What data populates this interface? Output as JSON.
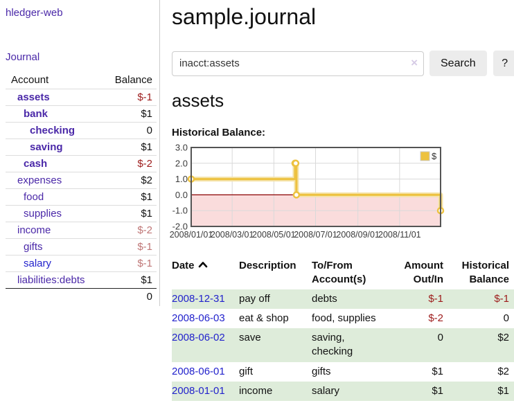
{
  "app": {
    "title": "hledger-web",
    "journal_nav": "Journal"
  },
  "sidebar": {
    "headers": {
      "account": "Account",
      "balance": "Balance"
    },
    "accounts": [
      {
        "name": "assets",
        "level": 1,
        "bold": true,
        "balance": "$-1",
        "balance_style": "neg-strong",
        "link_style": "purple"
      },
      {
        "name": "bank",
        "level": 2,
        "bold": true,
        "balance": "$1",
        "balance_style": "normal",
        "link_style": "purple"
      },
      {
        "name": "checking",
        "level": 3,
        "bold": true,
        "balance": "0",
        "balance_style": "normal",
        "link_style": "purple"
      },
      {
        "name": "saving",
        "level": 3,
        "bold": true,
        "balance": "$1",
        "balance_style": "normal",
        "link_style": "purple"
      },
      {
        "name": "cash",
        "level": 2,
        "bold": true,
        "balance": "$-2",
        "balance_style": "neg-strong",
        "link_style": "purple"
      },
      {
        "name": "expenses",
        "level": 1,
        "bold": false,
        "balance": "$2",
        "balance_style": "normal",
        "link_style": "purple"
      },
      {
        "name": "food",
        "level": 2,
        "bold": false,
        "balance": "$1",
        "balance_style": "normal",
        "link_style": "purple"
      },
      {
        "name": "supplies",
        "level": 2,
        "bold": false,
        "balance": "$1",
        "balance_style": "normal",
        "link_style": "purple"
      },
      {
        "name": "income",
        "level": 1,
        "bold": false,
        "balance": "$-2",
        "balance_style": "neg-muted",
        "link_style": "purple"
      },
      {
        "name": "gifts",
        "level": 2,
        "bold": false,
        "balance": "$-1",
        "balance_style": "neg-muted",
        "link_style": "purple"
      },
      {
        "name": "salary",
        "level": 2,
        "bold": false,
        "balance": "$-1",
        "balance_style": "neg-muted",
        "link_style": "blue"
      },
      {
        "name": "liabilities:debts",
        "level": 1,
        "bold": false,
        "balance": "$1",
        "balance_style": "normal",
        "link_style": "purple"
      }
    ],
    "total": "0"
  },
  "header": {
    "title": "sample.journal"
  },
  "search": {
    "value": "inacct:assets",
    "clear_icon": "×",
    "search_label": "Search",
    "help_label": "?"
  },
  "account_page": {
    "title": "assets",
    "chart_label": "Historical Balance:"
  },
  "chart_data": {
    "type": "line",
    "title": "Historical Balance",
    "step": true,
    "series": [
      {
        "name": "$",
        "color": "#edc240",
        "points": [
          [
            "2008-01-01",
            1
          ],
          [
            "2008-06-01",
            2
          ],
          [
            "2008-06-02",
            2
          ],
          [
            "2008-06-03",
            0
          ],
          [
            "2008-12-31",
            -1
          ]
        ]
      }
    ],
    "x_range": [
      "2008-01-01",
      "2008-12-31"
    ],
    "x_ticks": [
      "2008/01/01",
      "2008/03/01",
      "2008/05/01",
      "2008/07/01",
      "2008/09/01",
      "2008/11/01"
    ],
    "y_ticks": [
      "3.0",
      "2.0",
      "1.0",
      "0.0",
      "-1.0",
      "-2.0"
    ],
    "ylim": [
      -2,
      3
    ],
    "grid": true,
    "zero_line_color": "#8b0000",
    "negative_area_color": "#fadcdc",
    "legend": {
      "label": "$",
      "position": "top-right"
    }
  },
  "register": {
    "columns": [
      "Date",
      "Description",
      "To/From Account(s)",
      "Amount Out/In",
      "Historical Balance"
    ],
    "rows": [
      {
        "date": "2008-12-31",
        "description": "pay off",
        "accounts": "debts",
        "amount": "$-1",
        "amount_style": "neg-strong",
        "balance": "$-1",
        "balance_style": "neg-strong"
      },
      {
        "date": "2008-06-03",
        "description": "eat & shop",
        "accounts": "food, supplies",
        "amount": "$-2",
        "amount_style": "neg-strong",
        "balance": "0",
        "balance_style": "normal"
      },
      {
        "date": "2008-06-02",
        "description": "save",
        "accounts": "saving, checking",
        "amount": "0",
        "amount_style": "normal",
        "balance": "$2",
        "balance_style": "normal"
      },
      {
        "date": "2008-06-01",
        "description": "gift",
        "accounts": "gifts",
        "amount": "$1",
        "amount_style": "normal",
        "balance": "$2",
        "balance_style": "normal"
      },
      {
        "date": "2008-01-01",
        "description": "income",
        "accounts": "salary",
        "amount": "$1",
        "amount_style": "normal",
        "balance": "$1",
        "balance_style": "normal"
      }
    ]
  }
}
